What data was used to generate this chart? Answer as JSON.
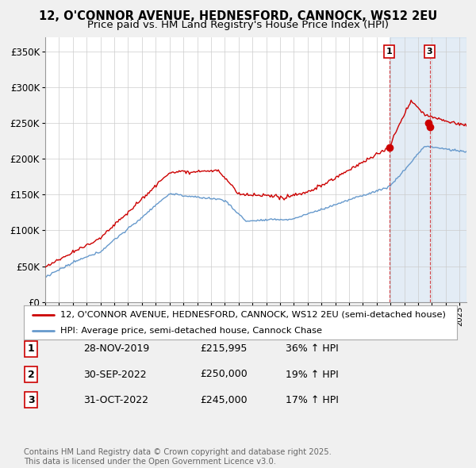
{
  "title": "12, O'CONNOR AVENUE, HEDNESFORD, CANNOCK, WS12 2EU",
  "subtitle": "Price paid vs. HM Land Registry's House Price Index (HPI)",
  "ylim": [
    0,
    370000
  ],
  "yticks": [
    0,
    50000,
    100000,
    150000,
    200000,
    250000,
    300000,
    350000
  ],
  "ytick_labels": [
    "£0",
    "£50K",
    "£100K",
    "£150K",
    "£200K",
    "£250K",
    "£300K",
    "£350K"
  ],
  "red_color": "#cc0000",
  "blue_color": "#6699cc",
  "shade_color": "#ddeeff",
  "bg_color": "#f0f0f0",
  "plot_bg": "#ffffff",
  "legend_label_red": "12, O'CONNOR AVENUE, HEDNESFORD, CANNOCK, WS12 2EU (semi-detached house)",
  "legend_label_blue": "HPI: Average price, semi-detached house, Cannock Chase",
  "transaction_labels": [
    "1",
    "2",
    "3"
  ],
  "transaction_dates_display": [
    "28-NOV-2019",
    "30-SEP-2022",
    "31-OCT-2022"
  ],
  "transaction_prices_display": [
    "£215,995",
    "£250,000",
    "£245,000"
  ],
  "transaction_hpi_display": [
    "36% ↑ HPI",
    "19% ↑ HPI",
    "17% ↑ HPI"
  ],
  "t1_year": 2019.917,
  "t2_year": 2022.75,
  "t3_year": 2022.833,
  "t1_price": 215995,
  "t2_price": 250000,
  "t3_price": 245000,
  "footnote": "Contains HM Land Registry data © Crown copyright and database right 2025.\nThis data is licensed under the Open Government Licence v3.0."
}
